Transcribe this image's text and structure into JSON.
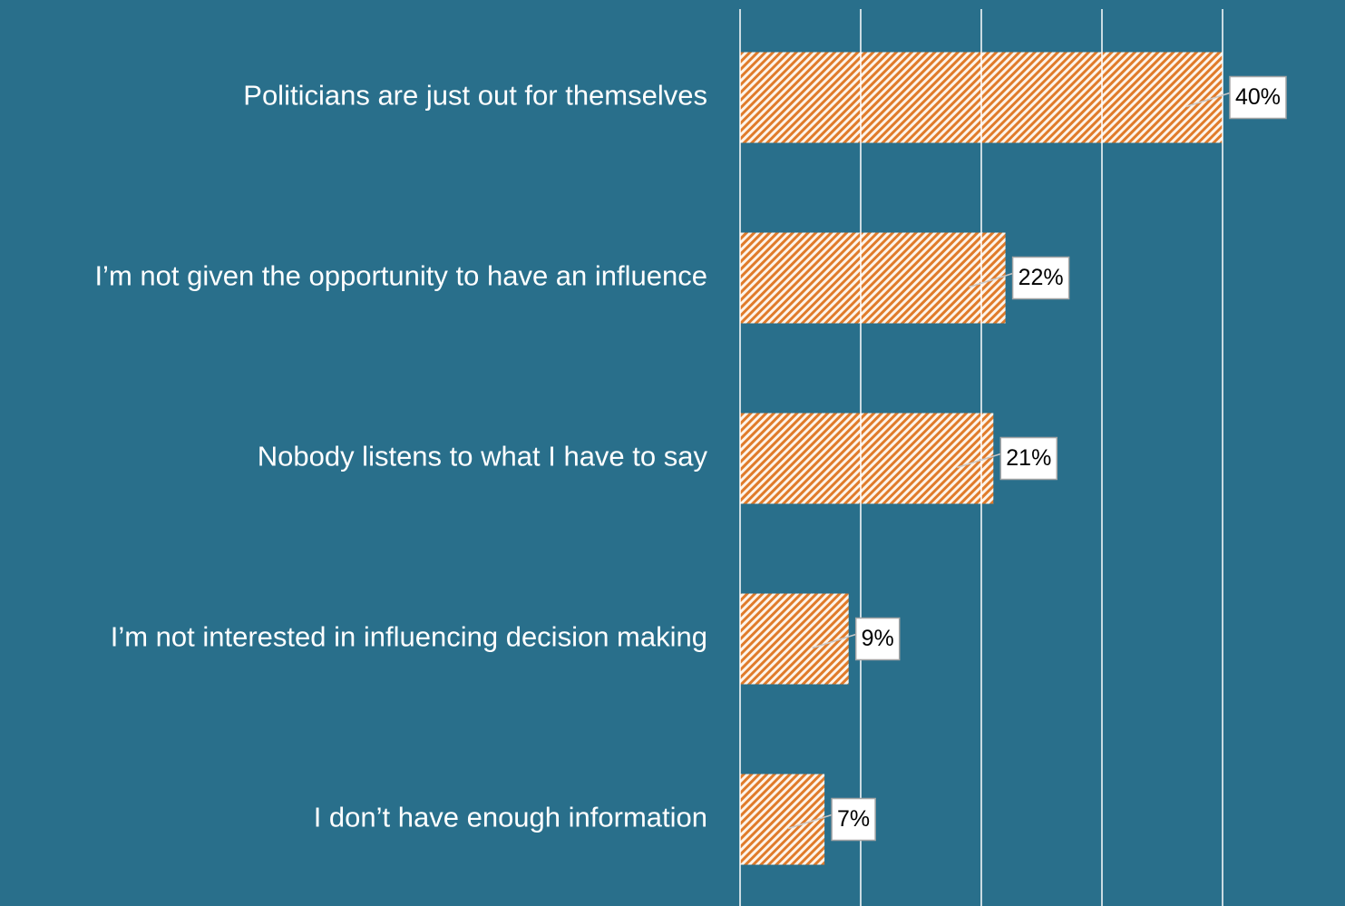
{
  "chart_data": {
    "type": "bar",
    "orientation": "horizontal",
    "categories": [
      "Politicians are just out for themselves",
      "I’m not given the opportunity to have an influence",
      "Nobody listens to what I have to say",
      "I’m not interested in influencing decision making",
      "I don’t have enough information"
    ],
    "values": [
      40,
      22,
      21,
      9,
      7
    ],
    "value_labels": [
      "40%",
      "22%",
      "21%",
      "9%",
      "7%"
    ],
    "color": "#e07b2a",
    "xlim": [
      0,
      50
    ],
    "xticks": [
      0,
      10,
      20,
      30,
      40
    ],
    "grid": true
  }
}
